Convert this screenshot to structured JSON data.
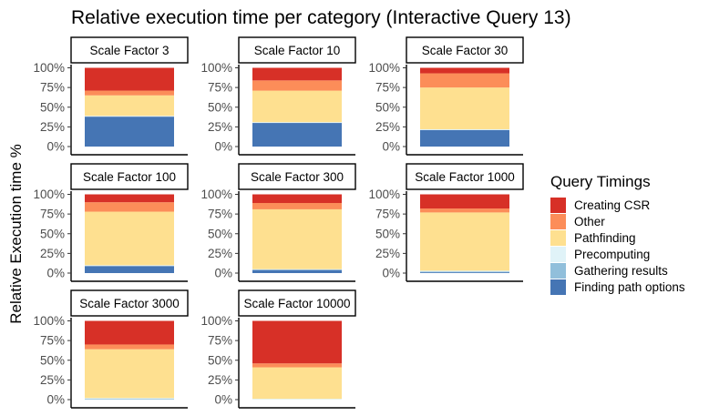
{
  "chart_data": {
    "type": "bar",
    "stacked": true,
    "title": "Relative execution time per category (Interactive Query 13)",
    "xlabel": "",
    "ylabel": "Relative Execution time %",
    "ylim": [
      0,
      1
    ],
    "y_ticks": [
      0,
      0.25,
      0.5,
      0.75,
      1.0
    ],
    "y_tick_labels": [
      "0%",
      "25%",
      "50%",
      "75%",
      "100%"
    ],
    "grid": false,
    "legend": {
      "title": "Query Timings",
      "position": "right",
      "items": [
        {
          "name": "Creating CSR",
          "color": "#d73027"
        },
        {
          "name": "Other",
          "color": "#fc8d59"
        },
        {
          "name": "Pathfinding",
          "color": "#fee090"
        },
        {
          "name": "Precomputing",
          "color": "#e0f3f8"
        },
        {
          "name": "Gathering results",
          "color": "#91bfdb"
        },
        {
          "name": "Finding path options",
          "color": "#4575b4"
        }
      ]
    },
    "series_order_bottom_to_top": [
      "Finding path options",
      "Gathering results",
      "Precomputing",
      "Pathfinding",
      "Other",
      "Creating CSR"
    ],
    "panels": [
      {
        "label": "Scale Factor 3",
        "values": {
          "Finding path options": 0.38,
          "Gathering results": 0.0,
          "Precomputing": 0.01,
          "Pathfinding": 0.26,
          "Other": 0.06,
          "Creating CSR": 0.29
        }
      },
      {
        "label": "Scale Factor 10",
        "values": {
          "Finding path options": 0.3,
          "Gathering results": 0.0,
          "Precomputing": 0.01,
          "Pathfinding": 0.4,
          "Other": 0.13,
          "Creating CSR": 0.16
        }
      },
      {
        "label": "Scale Factor 30",
        "values": {
          "Finding path options": 0.21,
          "Gathering results": 0.0,
          "Precomputing": 0.01,
          "Pathfinding": 0.53,
          "Other": 0.18,
          "Creating CSR": 0.07
        }
      },
      {
        "label": "Scale Factor 100",
        "values": {
          "Finding path options": 0.09,
          "Gathering results": 0.0,
          "Precomputing": 0.01,
          "Pathfinding": 0.68,
          "Other": 0.12,
          "Creating CSR": 0.1
        }
      },
      {
        "label": "Scale Factor 300",
        "values": {
          "Finding path options": 0.04,
          "Gathering results": 0.0,
          "Precomputing": 0.01,
          "Pathfinding": 0.76,
          "Other": 0.08,
          "Creating CSR": 0.11
        }
      },
      {
        "label": "Scale Factor 1000",
        "values": {
          "Finding path options": 0.01,
          "Gathering results": 0.01,
          "Precomputing": 0.01,
          "Pathfinding": 0.74,
          "Other": 0.05,
          "Creating CSR": 0.18
        }
      },
      {
        "label": "Scale Factor 3000",
        "values": {
          "Finding path options": 0.0,
          "Gathering results": 0.01,
          "Precomputing": 0.01,
          "Pathfinding": 0.62,
          "Other": 0.06,
          "Creating CSR": 0.3
        }
      },
      {
        "label": "Scale Factor 10000",
        "values": {
          "Finding path options": 0.0,
          "Gathering results": 0.0,
          "Precomputing": 0.01,
          "Pathfinding": 0.4,
          "Other": 0.05,
          "Creating CSR": 0.54
        }
      }
    ]
  }
}
